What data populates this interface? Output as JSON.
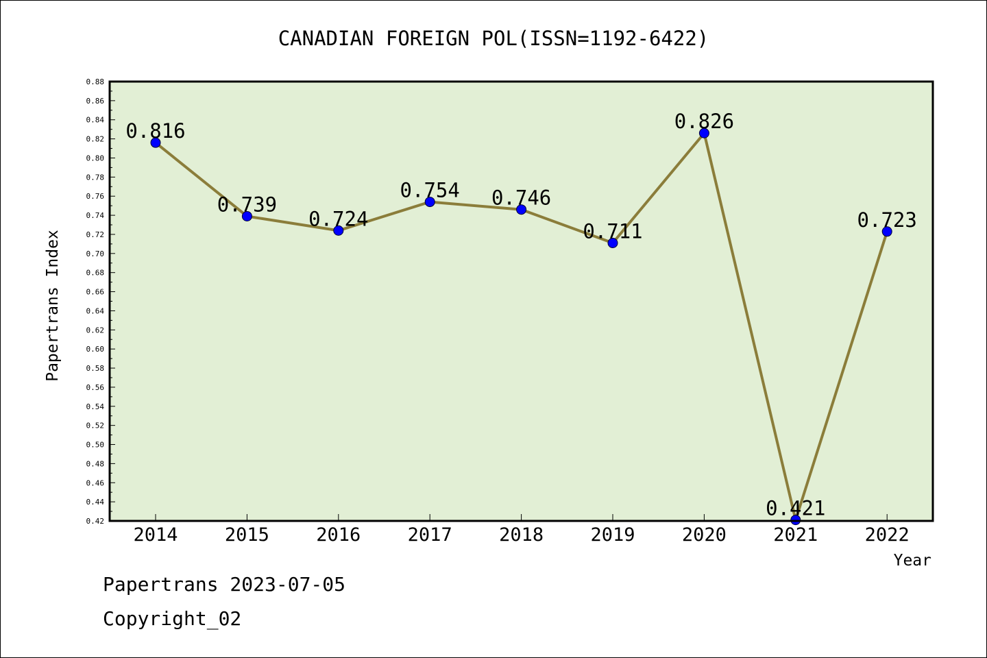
{
  "chart_data": {
    "type": "line",
    "title": "CANADIAN FOREIGN POL(ISSN=1192-6422)",
    "xlabel": "Year",
    "ylabel": "Papertrans Index",
    "categories": [
      "2014",
      "2015",
      "2016",
      "2017",
      "2018",
      "2019",
      "2020",
      "2021",
      "2022"
    ],
    "values": [
      0.816,
      0.739,
      0.724,
      0.754,
      0.746,
      0.711,
      0.826,
      0.421,
      0.723
    ],
    "data_labels": [
      "0.816",
      "0.739",
      "0.724",
      "0.754",
      "0.746",
      "0.711",
      "0.826",
      "0.421",
      "0.723"
    ],
    "ylim": [
      0.42,
      0.88
    ],
    "yticks": [
      "0.42",
      "0.44",
      "0.46",
      "0.48",
      "0.50",
      "0.52",
      "0.54",
      "0.56",
      "0.58",
      "0.60",
      "0.62",
      "0.64",
      "0.66",
      "0.68",
      "0.70",
      "0.72",
      "0.74",
      "0.76",
      "0.78",
      "0.80",
      "0.82",
      "0.84",
      "0.86",
      "0.88"
    ],
    "grid": false,
    "colors": {
      "plot_background": "#e2efd5",
      "line": "#8b7d3a",
      "marker": "#0000ff"
    }
  },
  "footer": {
    "line1": "Papertrans 2023-07-05",
    "line2": "Copyright_02"
  }
}
